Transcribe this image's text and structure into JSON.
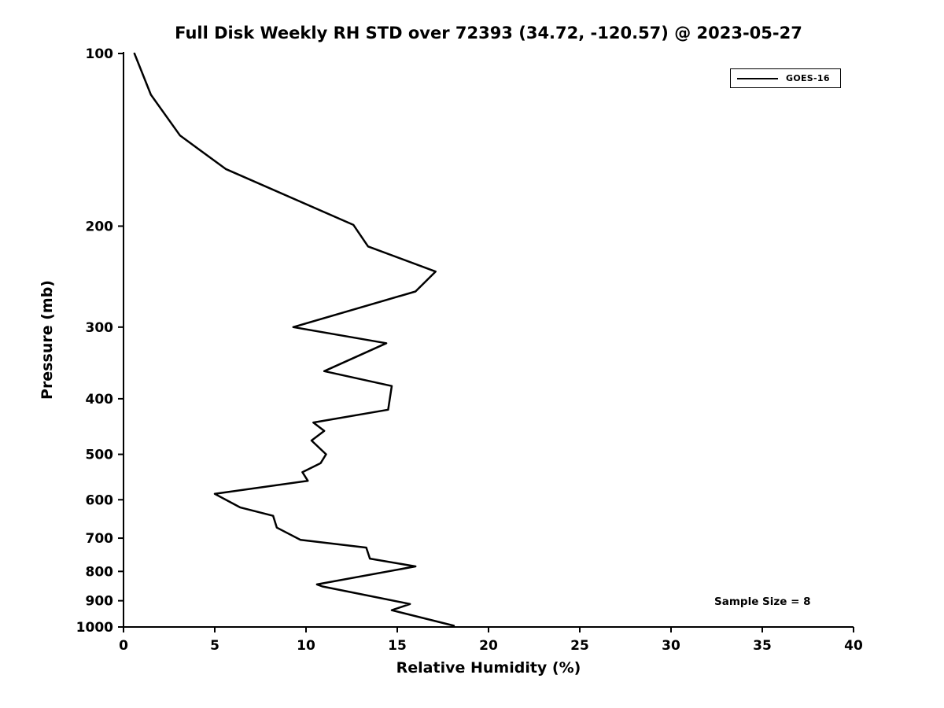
{
  "chart_data": {
    "type": "line",
    "title": "Full Disk Weekly RH STD over 72393 (34.72, -120.57) @ 2023-05-27",
    "xlabel": "Relative Humidity (%)",
    "ylabel": "Pressure (mb)",
    "xlim": [
      0,
      40
    ],
    "ylim": [
      100,
      1000
    ],
    "yscale": "log-inverted",
    "grid": false,
    "xticks": [
      0,
      5,
      10,
      15,
      20,
      25,
      30,
      35,
      40
    ],
    "yticks": [
      100,
      200,
      300,
      400,
      500,
      600,
      700,
      800,
      900,
      1000
    ],
    "legend_position": "top-right",
    "annotation": "Sample Size = 8",
    "line_color": "#000000",
    "series": [
      {
        "name": "GOES-16",
        "color": "#000000",
        "points_format": "[pressure_mb, rh_percent]",
        "points": [
          [
            100,
            0.6
          ],
          [
            118,
            1.5
          ],
          [
            139,
            3.1
          ],
          [
            159,
            5.6
          ],
          [
            199,
            12.6
          ],
          [
            217,
            13.4
          ],
          [
            240,
            17.1
          ],
          [
            260,
            16.0
          ],
          [
            300,
            9.3
          ],
          [
            320,
            14.4
          ],
          [
            358,
            11.0
          ],
          [
            380,
            14.7
          ],
          [
            418,
            14.5
          ],
          [
            440,
            10.4
          ],
          [
            455,
            11.0
          ],
          [
            473,
            10.3
          ],
          [
            500,
            11.1
          ],
          [
            518,
            10.8
          ],
          [
            537,
            9.8
          ],
          [
            556,
            10.1
          ],
          [
            586,
            5.0
          ],
          [
            619,
            6.4
          ],
          [
            640,
            8.2
          ],
          [
            671,
            8.4
          ],
          [
            705,
            9.7
          ],
          [
            727,
            13.3
          ],
          [
            760,
            13.5
          ],
          [
            784,
            16.0
          ],
          [
            843,
            10.6
          ],
          [
            850,
            10.9
          ],
          [
            912,
            15.7
          ],
          [
            935,
            14.7
          ],
          [
            995,
            18.1
          ]
        ]
      }
    ]
  }
}
